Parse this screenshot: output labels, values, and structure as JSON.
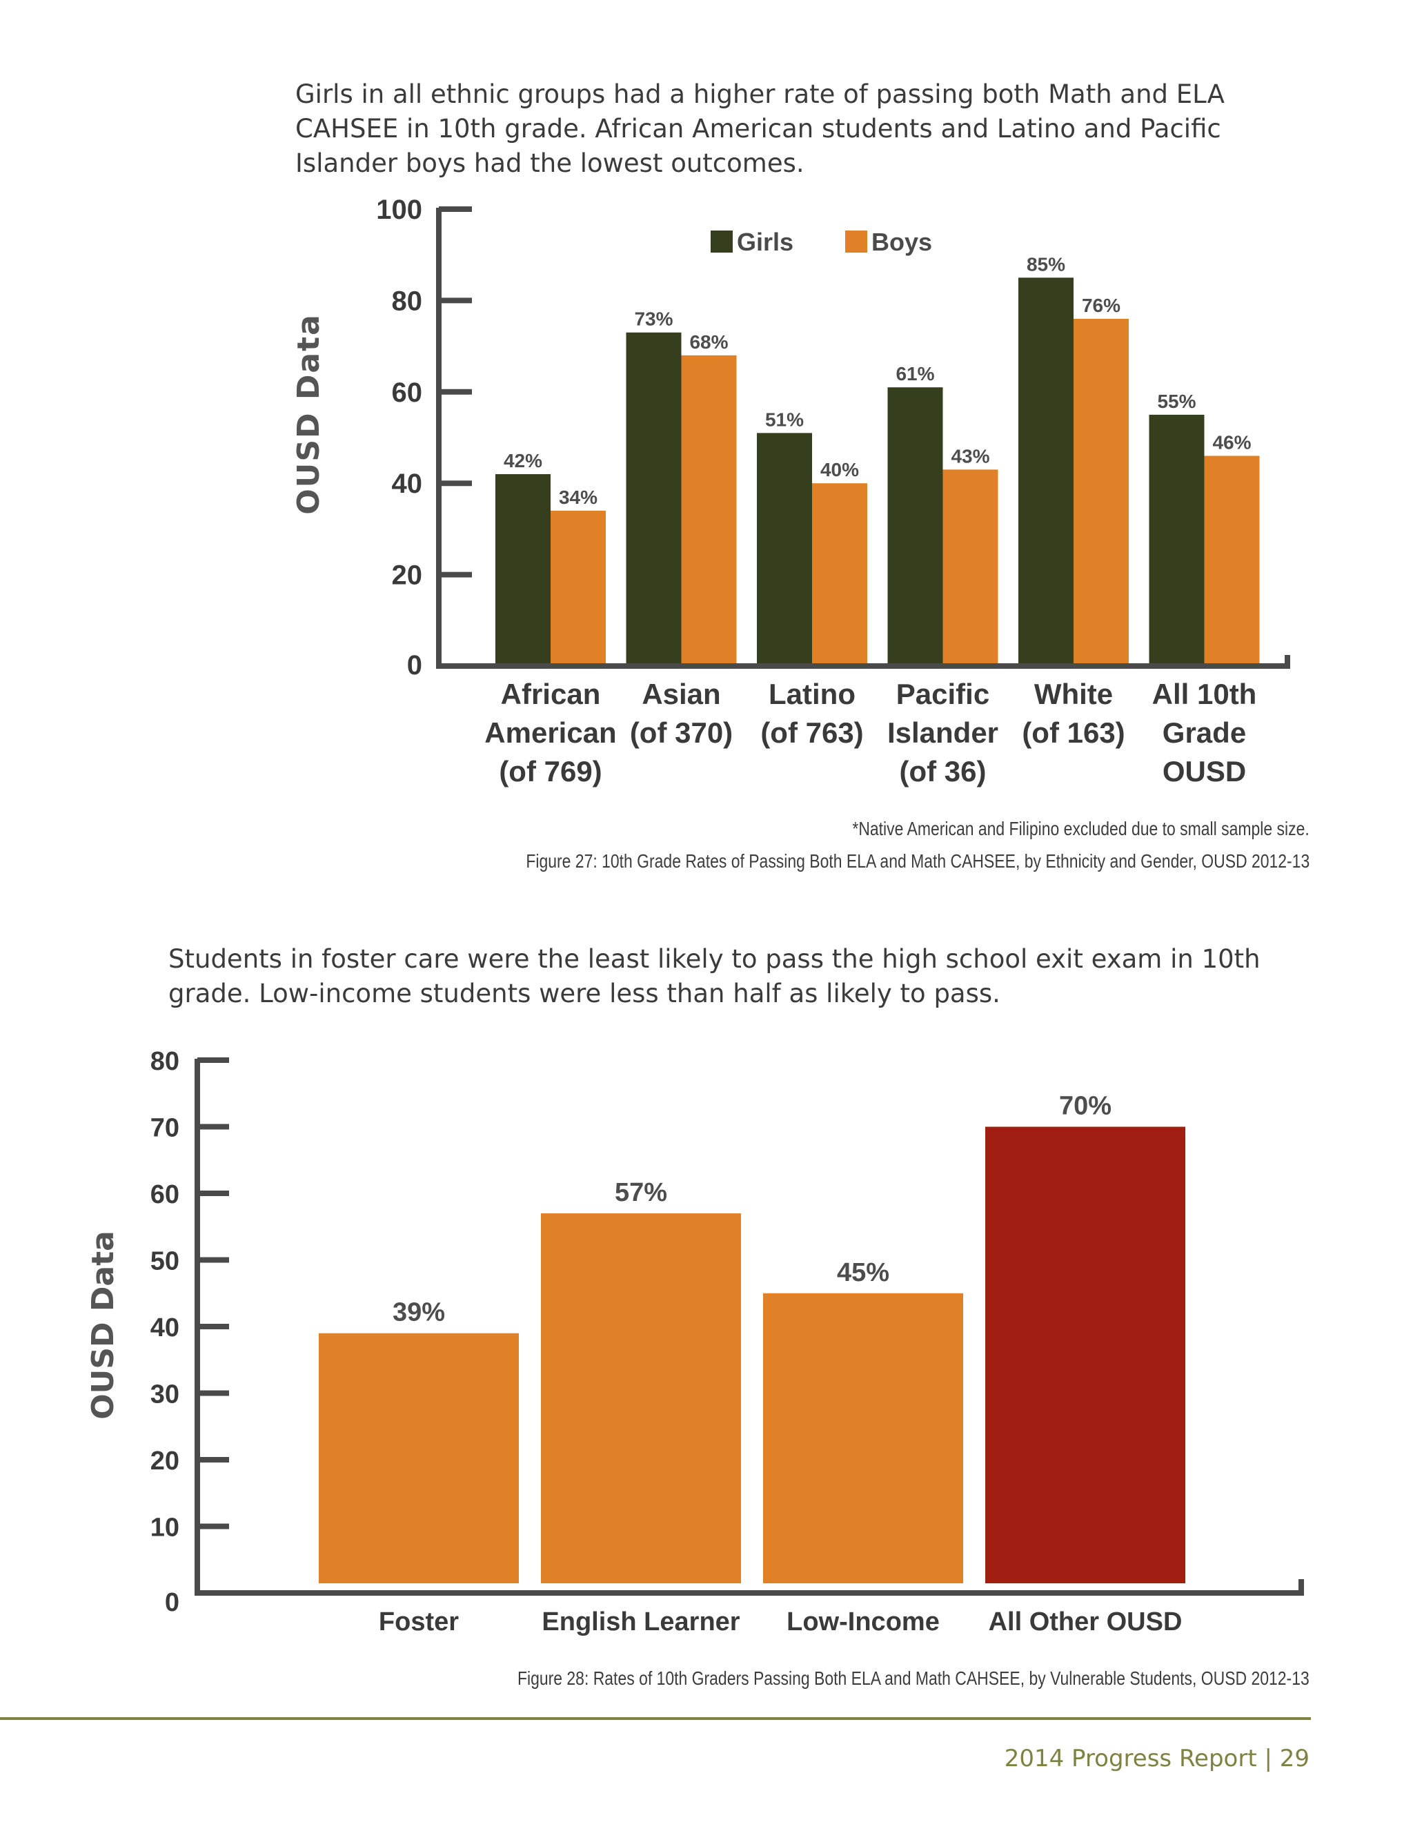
{
  "page": {
    "intro1": "Girls in all ethnic groups had a higher rate of passing both Math and ELA CAHSEE in 10th grade.  African American students and Latino and Pacific Islander boys had the lowest outcomes.",
    "intro2": "Students in foster care were the least likely to pass the high school exit exam in 10th grade. Low-income students were less than half as likely to pass.",
    "note27": "*Native American and Filipino excluded due to small sample size.",
    "caption27": "Figure 27: 10th Grade Rates of Passing Both ELA and Math CAHSEE, by Ethnicity and Gender, OUSD 2012-13",
    "caption28": "Figure 28: Rates of 10th Graders Passing Both ELA and Math CAHSEE, by Vulnerable Students, OUSD 2012-13",
    "footer": "2014 Progress Report | 29"
  },
  "chart_data": [
    {
      "type": "bar",
      "ylabel": "OUSD Data",
      "ylim": [
        0,
        100
      ],
      "yticks": [
        0,
        20,
        40,
        60,
        80,
        100
      ],
      "legend_position": "top-center",
      "categories": [
        [
          "African",
          "American",
          "(of 769)"
        ],
        [
          "Asian",
          "(of 370)"
        ],
        [
          "Latino",
          "(of 763)"
        ],
        [
          "Pacific",
          "Islander",
          "(of 36)"
        ],
        [
          "White",
          "(of 163)"
        ],
        [
          "All 10th",
          "Grade",
          "OUSD"
        ]
      ],
      "series": [
        {
          "name": "Girls",
          "color": "#363f1d",
          "values": [
            42,
            73,
            51,
            61,
            85,
            55
          ],
          "labels": [
            "42%",
            "73%",
            "51%",
            "61%",
            "85%",
            "55%"
          ]
        },
        {
          "name": "Boys",
          "color": "#e08128",
          "values": [
            34,
            68,
            40,
            43,
            76,
            46
          ],
          "labels": [
            "34%",
            "68%",
            "40%",
            "43%",
            "76%",
            "46%"
          ]
        }
      ]
    },
    {
      "type": "bar",
      "ylabel": "OUSD Data",
      "ylim": [
        0,
        80
      ],
      "yticks": [
        0,
        10,
        20,
        30,
        40,
        50,
        60,
        70,
        80
      ],
      "categories": [
        "Foster",
        "English Learner",
        "Low-Income",
        "All Other OUSD"
      ],
      "values": [
        39,
        57,
        45,
        70
      ],
      "labels": [
        "39%",
        "57%",
        "45%",
        "70%"
      ],
      "colors": [
        "#e08128",
        "#e08128",
        "#e08128",
        "#a01f12"
      ]
    }
  ]
}
